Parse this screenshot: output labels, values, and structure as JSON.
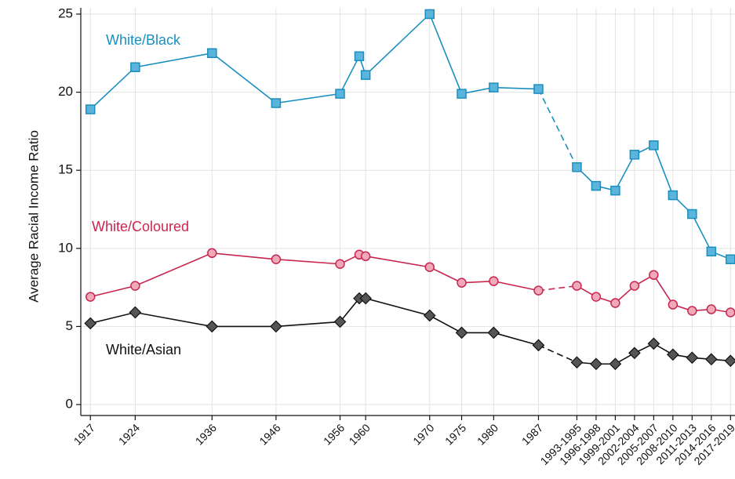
{
  "chart_data": {
    "type": "line",
    "y_label": "Average Racial Income Ratio",
    "x": [
      1917,
      1924,
      1936,
      1946,
      1956,
      1959,
      1960,
      1970,
      1975,
      1980,
      1987,
      1993,
      1996,
      1999,
      2002,
      2005,
      2008,
      2011,
      2014,
      2017
    ],
    "xlim": [
      1915.5,
      2017.7
    ],
    "xticks": [
      1917,
      1924,
      1936,
      1946,
      1956,
      1960,
      1970,
      1975,
      1980,
      1987,
      {
        "value": 1993,
        "label": "1993-1995"
      },
      {
        "value": 1996,
        "label": "1996-1998"
      },
      {
        "value": 1999,
        "label": "1999-2001"
      },
      {
        "value": 2002,
        "label": "2002-2004"
      },
      {
        "value": 2005,
        "label": "2005-2007"
      },
      {
        "value": 2008,
        "label": "2008-2010"
      },
      {
        "value": 2011,
        "label": "2011-2013"
      },
      {
        "value": 2014,
        "label": "2014-2016"
      },
      {
        "value": 2017,
        "label": "2017-2019"
      }
    ],
    "ylim": [
      -0.7,
      25.4
    ],
    "yticks": [
      0,
      5,
      10,
      15,
      20,
      25
    ],
    "grid": true,
    "dashed_segments": [
      10
    ],
    "series": [
      {
        "name": "White/Black",
        "color": "#1a8fbf",
        "marker": "square",
        "marker_fill": "#5ab4dc",
        "values": [
          18.9,
          21.6,
          22.5,
          19.3,
          19.9,
          22.3,
          21.1,
          25.0,
          19.9,
          20.3,
          20.2,
          15.2,
          14.0,
          13.7,
          16.0,
          16.6,
          13.4,
          12.2,
          9.8,
          9.3
        ]
      },
      {
        "name": "White/Coloured",
        "color": "#c8264f",
        "marker": "circle",
        "marker_fill": "#f0a9b8",
        "values": [
          6.9,
          7.6,
          9.7,
          9.3,
          9.0,
          9.6,
          9.5,
          8.8,
          7.8,
          7.9,
          7.3,
          7.6,
          6.9,
          6.5,
          7.6,
          8.3,
          6.4,
          6.0,
          6.1,
          5.9
        ]
      },
      {
        "name": "White/Asian",
        "color": "#111111",
        "marker": "diamond",
        "marker_fill": "#555555",
        "values": [
          5.2,
          5.9,
          5.0,
          5.0,
          5.3,
          6.8,
          6.8,
          5.7,
          4.6,
          4.6,
          3.8,
          2.7,
          2.6,
          2.6,
          3.3,
          3.9,
          3.2,
          3.0,
          2.9,
          2.8
        ]
      }
    ]
  }
}
